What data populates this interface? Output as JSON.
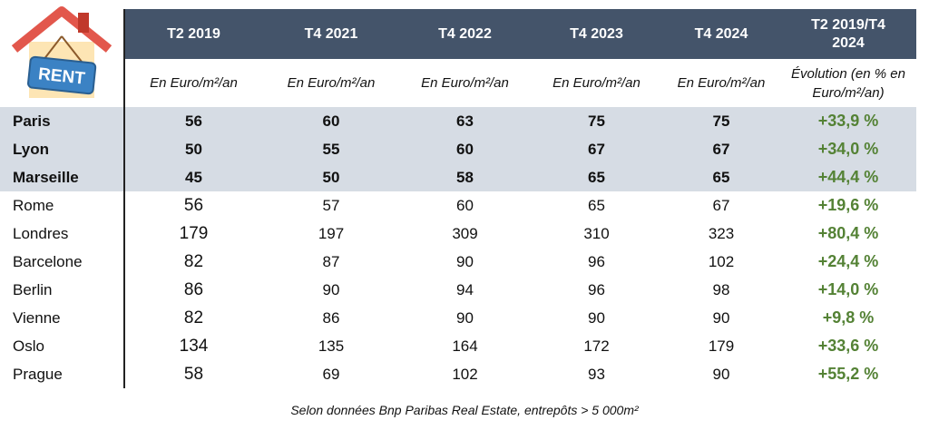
{
  "icon_label": "RENT",
  "table": {
    "headers": [
      "T2 2019",
      "T4 2021",
      "T4 2022",
      "T4 2023",
      "T4 2024",
      "T2 2019/T4 2024"
    ],
    "units": [
      "En Euro/m²/an",
      "En Euro/m²/an",
      "En Euro/m²/an",
      "En Euro/m²/an",
      "En Euro/m²/an",
      "Évolution (en % en Euro/m²/an)"
    ],
    "rows": [
      {
        "name": "Paris",
        "highlight": true,
        "cells": [
          "56",
          "60",
          "63",
          "75",
          "75",
          "+33,9 %"
        ]
      },
      {
        "name": "Lyon",
        "highlight": true,
        "cells": [
          "50",
          "55",
          "60",
          "67",
          "67",
          "+34,0 %"
        ]
      },
      {
        "name": "Marseille",
        "highlight": true,
        "cells": [
          "45",
          "50",
          "58",
          "65",
          "65",
          "+44,4 %"
        ]
      },
      {
        "name": "Rome",
        "highlight": false,
        "cells": [
          "56",
          "57",
          "60",
          "65",
          "67",
          "+19,6 %"
        ]
      },
      {
        "name": "Londres",
        "highlight": false,
        "cells": [
          "179",
          "197",
          "309",
          "310",
          "323",
          "+80,4 %"
        ]
      },
      {
        "name": "Barcelone",
        "highlight": false,
        "cells": [
          "82",
          "87",
          "90",
          "96",
          "102",
          "+24,4 %"
        ]
      },
      {
        "name": "Berlin",
        "highlight": false,
        "cells": [
          "86",
          "90",
          "94",
          "96",
          "98",
          "+14,0 %"
        ]
      },
      {
        "name": "Vienne",
        "highlight": false,
        "cells": [
          "82",
          "86",
          "90",
          "90",
          "90",
          "+9,8 %"
        ]
      },
      {
        "name": "Oslo",
        "highlight": false,
        "cells": [
          "134",
          "135",
          "164",
          "172",
          "179",
          "+33,6 %"
        ]
      },
      {
        "name": "Prague",
        "highlight": false,
        "cells": [
          "58",
          "69",
          "102",
          "93",
          "90",
          "+55,2 %"
        ]
      }
    ]
  },
  "footer": "Selon données Bnp Paribas Real Estate, entrepôts > 5 000m²"
}
